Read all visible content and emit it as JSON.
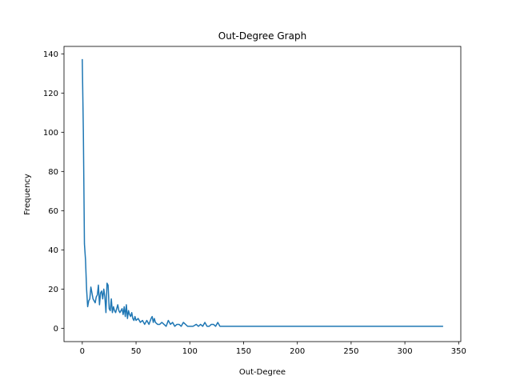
{
  "chart_data": {
    "type": "line",
    "title": "Out-Degree Graph",
    "xlabel": "Out-Degree",
    "ylabel": "Frequency",
    "xlim": [
      -17,
      352
    ],
    "ylim": [
      -6.8,
      143.8
    ],
    "xticks": [
      0,
      50,
      100,
      150,
      200,
      250,
      300,
      350
    ],
    "yticks": [
      0,
      20,
      40,
      60,
      80,
      100,
      120,
      140
    ],
    "grid": false,
    "legend": "none",
    "series": [
      {
        "color": "#1f77b4",
        "x": [
          0,
          1,
          2,
          3,
          4,
          5,
          6,
          7,
          8,
          9,
          10,
          11,
          12,
          13,
          14,
          15,
          16,
          17,
          18,
          19,
          20,
          21,
          22,
          23,
          24,
          25,
          26,
          27,
          28,
          29,
          30,
          31,
          32,
          33,
          34,
          35,
          36,
          37,
          38,
          39,
          40,
          41,
          42,
          43,
          44,
          45,
          46,
          47,
          48,
          49,
          50,
          52,
          54,
          56,
          58,
          60,
          62,
          64,
          65,
          66,
          67,
          68,
          70,
          72,
          74,
          76,
          78,
          80,
          82,
          84,
          86,
          88,
          90,
          92,
          94,
          96,
          98,
          100,
          103,
          106,
          108,
          110,
          112,
          114,
          116,
          118,
          120,
          122,
          124,
          126,
          128,
          335
        ],
        "values": [
          137,
          100,
          43,
          35,
          20,
          11,
          14,
          15,
          21,
          18,
          15,
          14,
          13,
          16,
          17,
          22,
          12,
          18,
          19,
          15,
          20,
          16,
          8,
          23,
          22,
          10,
          9,
          15,
          8,
          11,
          9,
          8,
          10,
          12,
          9,
          8,
          9,
          10,
          7,
          11,
          6,
          12,
          5,
          9,
          7,
          6,
          8,
          5,
          4,
          6,
          4,
          5,
          3,
          4,
          2,
          4,
          2,
          5,
          6,
          3,
          5,
          3,
          2,
          2,
          3,
          2,
          1,
          4,
          2,
          3,
          1,
          2,
          2,
          1,
          3,
          2,
          1,
          1,
          1,
          2,
          1,
          2,
          1,
          3,
          1,
          1,
          2,
          2,
          1,
          3,
          1,
          1
        ]
      }
    ]
  }
}
